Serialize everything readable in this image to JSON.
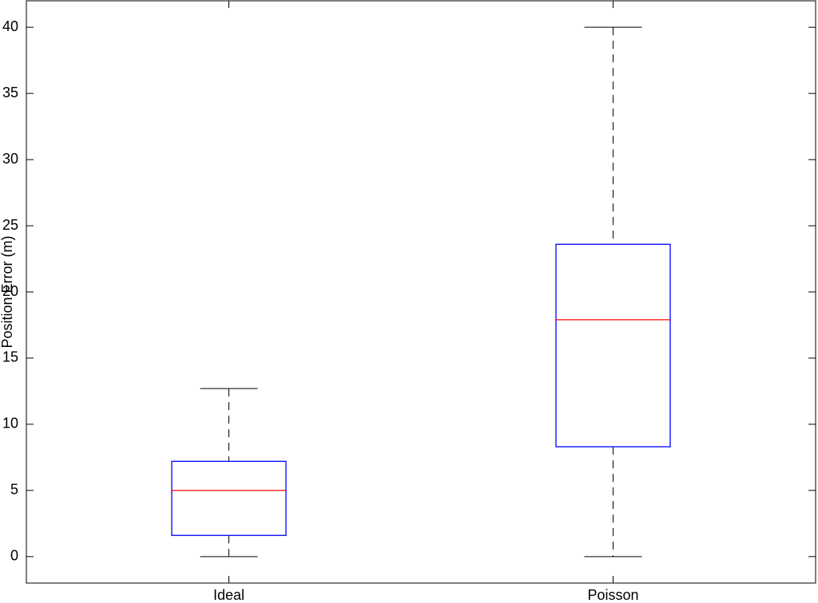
{
  "chart_data": {
    "type": "box",
    "y_label": "Position Error (m)",
    "categories": [
      "Ideal",
      "Poisson"
    ],
    "boxes": [
      {
        "whisker_low": 0,
        "q1": 1.6,
        "median": 5.0,
        "q3": 7.2,
        "whisker_high": 12.7
      },
      {
        "whisker_low": 0,
        "q1": 8.3,
        "median": 17.9,
        "q3": 23.6,
        "whisker_high": 40
      }
    ],
    "box_color": "#0000ff",
    "median_color": "#ff0000",
    "whisker_color": "#000000",
    "ylim": [
      -2,
      42
    ],
    "yticks": [
      0,
      5,
      10,
      15,
      20,
      25,
      30,
      35,
      40
    ]
  }
}
